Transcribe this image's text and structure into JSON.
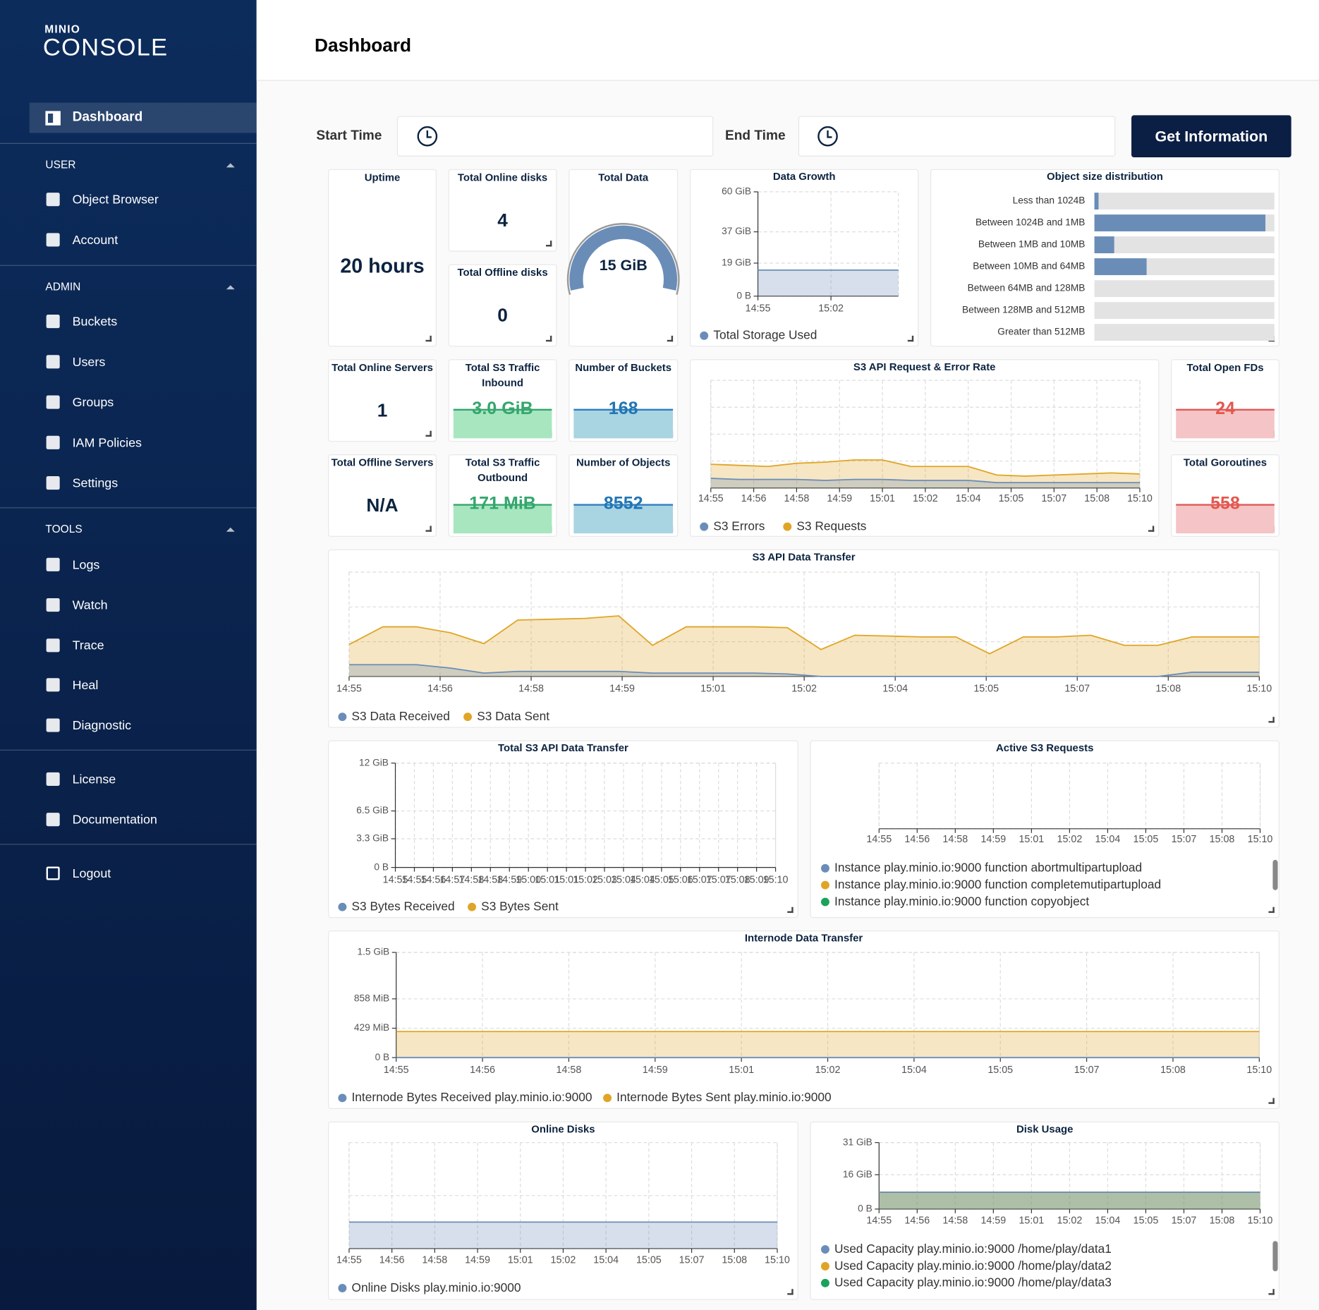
{
  "sidebar": {
    "brand": "MINIO",
    "product": "CONSOLE",
    "active": "Dashboard",
    "sections": [
      {
        "title": "USER",
        "items": [
          "Object Browser",
          "Account"
        ]
      },
      {
        "title": "ADMIN",
        "items": [
          "Buckets",
          "Users",
          "Groups",
          "IAM Policies",
          "Settings"
        ]
      },
      {
        "title": "TOOLS",
        "items": [
          "Logs",
          "Watch",
          "Trace",
          "Heal",
          "Diagnostic"
        ]
      }
    ],
    "links": [
      "License",
      "Documentation"
    ],
    "logout": "Logout"
  },
  "header": {
    "title": "Dashboard"
  },
  "filters": {
    "start_label": "Start Time",
    "end_label": "End Time",
    "button": "Get Information"
  },
  "cards": [
    {
      "title": "Uptime",
      "value": "20 hours"
    },
    {
      "title": "Total Online disks",
      "value": 4
    },
    {
      "title": "Total Offline disks",
      "value": 0
    },
    {
      "title": "Total Data",
      "value": "15 GiB"
    },
    {
      "title": "Total Online Servers",
      "value": 1
    },
    {
      "title": "Total Offline Servers",
      "value": "N/A"
    },
    {
      "title": "Total S3 Traffic Inbound",
      "value": "3.0 GiB"
    },
    {
      "title": "Total S3 Traffic Outbound",
      "value": "171 MiB"
    },
    {
      "title": "Number of Buckets",
      "value": 168
    },
    {
      "title": "Number of Objects",
      "value": 8552
    },
    {
      "title": "Total Open FDs",
      "value": 24
    },
    {
      "title": "Total Goroutines",
      "value": 558
    }
  ],
  "charts": [
    {
      "type": "area",
      "title": "Data Growth",
      "xticks": [
        "14:55",
        "15:02"
      ],
      "ylim": [
        0,
        60
      ],
      "yticks": [
        {
          "value": 0,
          "label": "0 B"
        },
        {
          "value": 19,
          "label": "19 GiB"
        },
        {
          "value": 37,
          "label": "37 GiB"
        },
        {
          "value": 60,
          "label": "60 GiB"
        }
      ],
      "series": [
        {
          "name": "Total Storage Used",
          "color": "#6a8db8",
          "values": [
            15,
            15
          ]
        }
      ]
    },
    {
      "type": "hbar",
      "title": "Object size distribution",
      "categories": [
        "Less than 1024B",
        "Between 1024B and 1MB",
        "Between 1MB and 10MB",
        "Between 10MB and 64MB",
        "Between 64MB and 128MB",
        "Between 128MB and 512MB",
        "Greater than 512MB"
      ],
      "values": [
        2.3,
        95,
        11,
        29,
        0,
        0,
        0
      ],
      "xlim": [
        0,
        100
      ],
      "color": "#6a8db8"
    },
    {
      "type": "area",
      "title": "S3 API Request & Error Rate",
      "xticks": [
        "14:55",
        "14:56",
        "14:58",
        "14:59",
        "15:01",
        "15:02",
        "15:04",
        "15:05",
        "15:07",
        "15:08",
        "15:10"
      ],
      "ylim": [
        0,
        100
      ],
      "series": [
        {
          "name": "S3 Errors",
          "color": "#6a8db8",
          "values": [
            9,
            8,
            8,
            8,
            7,
            8,
            8,
            7,
            7,
            7,
            5,
            5,
            5,
            5,
            5,
            5
          ]
        },
        {
          "name": "S3 Requests",
          "color": "#e0a526",
          "values": [
            22,
            21,
            20,
            23,
            24,
            26,
            26,
            20,
            20,
            20,
            12,
            11,
            12,
            13,
            14,
            13
          ]
        }
      ]
    },
    {
      "type": "area",
      "title": "S3 API Data Transfer",
      "xticks": [
        "14:55",
        "14:56",
        "14:58",
        "14:59",
        "15:01",
        "15:02",
        "15:04",
        "15:05",
        "15:07",
        "15:08",
        "15:10"
      ],
      "ylim": [
        0,
        124
      ],
      "series": [
        {
          "name": "S3 Data Received",
          "color": "#6a8db8",
          "values": [
            14,
            14,
            14,
            10,
            4,
            6,
            6,
            6,
            6,
            4,
            4,
            4,
            4,
            3,
            0,
            0,
            0,
            0,
            0,
            0,
            0,
            0,
            0,
            0,
            0,
            5,
            5,
            5
          ]
        },
        {
          "name": "S3 Data Sent",
          "color": "#e0a526",
          "values": [
            38,
            59,
            59,
            52,
            39,
            67,
            68,
            69,
            72,
            37,
            59,
            59,
            59,
            58,
            32,
            49,
            48,
            47,
            47,
            27,
            47,
            47,
            49,
            37,
            37,
            47,
            47,
            47
          ]
        }
      ]
    },
    {
      "type": "area",
      "title": "Total S3 API Data Transfer",
      "xticks": [
        "14:55",
        "14:55",
        "14:56",
        "14:57",
        "14:58",
        "14:58",
        "14:59",
        "15:00",
        "15:01",
        "15:01",
        "15:02",
        "15:03",
        "15:04",
        "15:04",
        "15:05",
        "15:06",
        "15:07",
        "15:07",
        "15:08",
        "15:09",
        "15:10"
      ],
      "ylim": [
        0,
        12
      ],
      "yticks": [
        {
          "value": 0,
          "label": "0 B"
        },
        {
          "value": 3.3,
          "label": "3.3 GiB"
        },
        {
          "value": 6.5,
          "label": "6.5 GiB"
        },
        {
          "value": 12,
          "label": "12 GiB"
        }
      ],
      "series": [
        {
          "name": "S3 Bytes Received",
          "color": "#6a8db8"
        },
        {
          "name": "S3 Bytes Sent",
          "color": "#e0a526"
        }
      ]
    },
    {
      "type": "area",
      "title": "Active S3 Requests",
      "xticks": [
        "14:55",
        "14:56",
        "14:58",
        "14:59",
        "15:01",
        "15:02",
        "15:04",
        "15:05",
        "15:07",
        "15:08",
        "15:10"
      ],
      "series": [
        {
          "name": "Instance play.minio.io:9000 function abortmultipartupload",
          "color": "#6a8db8"
        },
        {
          "name": "Instance play.minio.io:9000 function completemutipartupload",
          "color": "#e0a526"
        },
        {
          "name": "Instance play.minio.io:9000 function copyobject",
          "color": "#1aa35a"
        }
      ]
    },
    {
      "type": "area",
      "title": "Internode Data Transfer",
      "xticks": [
        "14:55",
        "14:56",
        "14:58",
        "14:59",
        "15:01",
        "15:02",
        "15:04",
        "15:05",
        "15:07",
        "15:08",
        "15:10"
      ],
      "ylim": [
        0,
        1536
      ],
      "yticks": [
        {
          "value": 0,
          "label": "0 B"
        },
        {
          "value": 429,
          "label": "429 MiB"
        },
        {
          "value": 858,
          "label": "858 MiB"
        },
        {
          "value": 1536,
          "label": "1.5 GiB"
        }
      ],
      "series": [
        {
          "name": "Internode Bytes Received play.minio.io:9000",
          "color": "#6a8db8",
          "values": [
            0,
            0
          ]
        },
        {
          "name": "Internode Bytes Sent play.minio.io:9000",
          "color": "#e0a526",
          "values": [
            381,
            381
          ]
        }
      ]
    },
    {
      "type": "area",
      "title": "Online Disks",
      "xticks": [
        "14:55",
        "14:56",
        "14:58",
        "14:59",
        "15:01",
        "15:02",
        "15:04",
        "15:05",
        "15:07",
        "15:08",
        "15:10"
      ],
      "ylim": [
        0,
        16
      ],
      "series": [
        {
          "name": "Online Disks play.minio.io:9000",
          "color": "#6a8db8",
          "values": [
            4,
            4
          ]
        }
      ]
    },
    {
      "type": "area",
      "title": "Disk Usage",
      "xticks": [
        "14:55",
        "14:56",
        "14:58",
        "14:59",
        "15:01",
        "15:02",
        "15:04",
        "15:05",
        "15:07",
        "15:08",
        "15:10"
      ],
      "ylim": [
        0,
        31
      ],
      "yticks": [
        {
          "value": 0,
          "label": "0 B"
        },
        {
          "value": 16,
          "label": "16 GiB"
        },
        {
          "value": 31,
          "label": "31 GiB"
        }
      ],
      "series": [
        {
          "name": "Used Capacity play.minio.io:9000 /home/play/data1",
          "color": "#6a8db8",
          "values": [
            7.8,
            7.8
          ]
        },
        {
          "name": "Used Capacity play.minio.io:9000 /home/play/data2",
          "color": "#e0a526",
          "values": [
            7.8,
            7.8
          ]
        },
        {
          "name": "Used Capacity play.minio.io:9000 /home/play/data3",
          "color": "#1aa35a",
          "values": [
            7.8,
            7.8
          ]
        }
      ]
    }
  ]
}
